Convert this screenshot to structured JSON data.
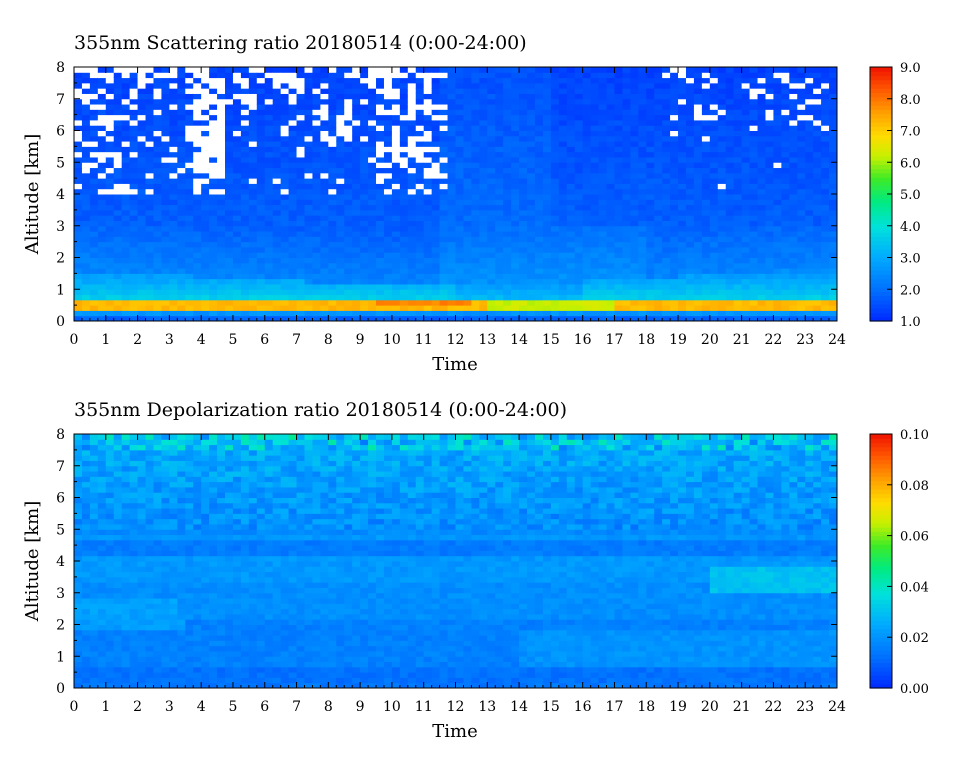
{
  "chart_data": [
    {
      "type": "heatmap",
      "title": "355nm Scattering ratio   20180514 (0:00-24:00)",
      "xlabel": "Time",
      "ylabel": "Altitude [km]",
      "xlim": [
        0,
        24
      ],
      "ylim": [
        0,
        8
      ],
      "x_ticks": [
        "0",
        "1",
        "2",
        "3",
        "4",
        "5",
        "6",
        "7",
        "8",
        "9",
        "10",
        "11",
        "12",
        "13",
        "14",
        "15",
        "16",
        "17",
        "18",
        "19",
        "20",
        "21",
        "22",
        "23",
        "24"
      ],
      "y_ticks": [
        "0",
        "1",
        "2",
        "3",
        "4",
        "5",
        "6",
        "7",
        "8"
      ],
      "colorbar": {
        "min": 1.0,
        "max": 9.0,
        "ticks": [
          "1.0",
          "2.0",
          "3.0",
          "4.0",
          "5.0",
          "6.0",
          "7.0",
          "8.0",
          "9.0"
        ]
      },
      "features": {
        "boundary_layer_peak_altitude_km": 0.5,
        "boundary_layer_peak_value": 8.0,
        "aerosol_layer_top_km": [
          1.6,
          1.3,
          1.1,
          1.3,
          1.7
        ],
        "aerosol_layer_top_times_h": [
          0,
          6,
          11,
          17,
          24
        ],
        "cloud_free_gaps_alt_km": [
          4.0,
          8.0
        ]
      }
    },
    {
      "type": "heatmap",
      "title": "355nm Depolarization ratio   20180514 (0:00-24:00)",
      "xlabel": "Time",
      "ylabel": "Altitude [km]",
      "xlim": [
        0,
        24
      ],
      "ylim": [
        0,
        8
      ],
      "x_ticks": [
        "0",
        "1",
        "2",
        "3",
        "4",
        "5",
        "6",
        "7",
        "8",
        "9",
        "10",
        "11",
        "12",
        "13",
        "14",
        "15",
        "16",
        "17",
        "18",
        "19",
        "20",
        "21",
        "22",
        "23",
        "24"
      ],
      "y_ticks": [
        "0",
        "1",
        "2",
        "3",
        "4",
        "5",
        "6",
        "7",
        "8"
      ],
      "colorbar": {
        "min": 0.0,
        "max": 0.1,
        "ticks": [
          "0.00",
          "0.02",
          "0.04",
          "0.06",
          "0.08",
          "0.10"
        ]
      },
      "features": {
        "background_value": 0.015,
        "upper_noise_value": 0.025,
        "dust_layer_alt_km": [
          3.0,
          3.8
        ],
        "dust_layer_times_h": [
          20,
          24
        ],
        "dust_layer_value": 0.03
      }
    }
  ]
}
